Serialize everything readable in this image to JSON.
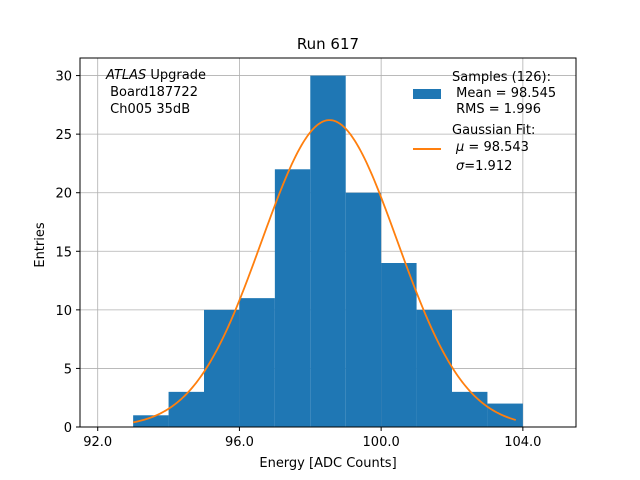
{
  "chart_data": {
    "type": "bar",
    "title": "Run 617",
    "xlabel": "Energy [ADC Counts]",
    "ylabel": "Entries",
    "xlim": [
      91.5,
      105.5
    ],
    "ylim": [
      0,
      31.5
    ],
    "grid": true,
    "xticks": [
      92.0,
      96.0,
      100.0,
      104.0
    ],
    "xtick_labels": [
      "92.0",
      "96.0",
      "100.0",
      "104.0"
    ],
    "yticks": [
      0,
      5,
      10,
      15,
      20,
      25,
      30
    ],
    "ytick_labels": [
      "0",
      "5",
      "10",
      "15",
      "20",
      "25",
      "30"
    ],
    "histogram": {
      "bin_edges": [
        93,
        94,
        95,
        96,
        97,
        98,
        99,
        100,
        101,
        102,
        103,
        104
      ],
      "counts": [
        1,
        3,
        10,
        11,
        22,
        30,
        20,
        14,
        10,
        3,
        2
      ],
      "color": "#1f77b4"
    },
    "fit": {
      "type": "gaussian",
      "mu": 98.543,
      "sigma": 1.912,
      "amplitude": 26.2,
      "x_range": [
        93.0,
        103.8
      ],
      "color": "#ff7f0e"
    },
    "annotation": {
      "line1_italic": "ATLAS",
      "line1_rest": " Upgrade",
      "line2": " Board187722",
      "line3": " Ch005 35dB"
    },
    "legend": {
      "placement": "upper right",
      "samples_line1": "Samples (126):",
      "samples_line2": " Mean = 98.545",
      "samples_line3": " RMS = 1.996",
      "fit_line1": "Gaussian Fit:",
      "fit_mu_symbol": "μ",
      "fit_mu_value": " = 98.543",
      "fit_sigma_symbol": "σ",
      "fit_sigma_value": "=1.912"
    }
  }
}
